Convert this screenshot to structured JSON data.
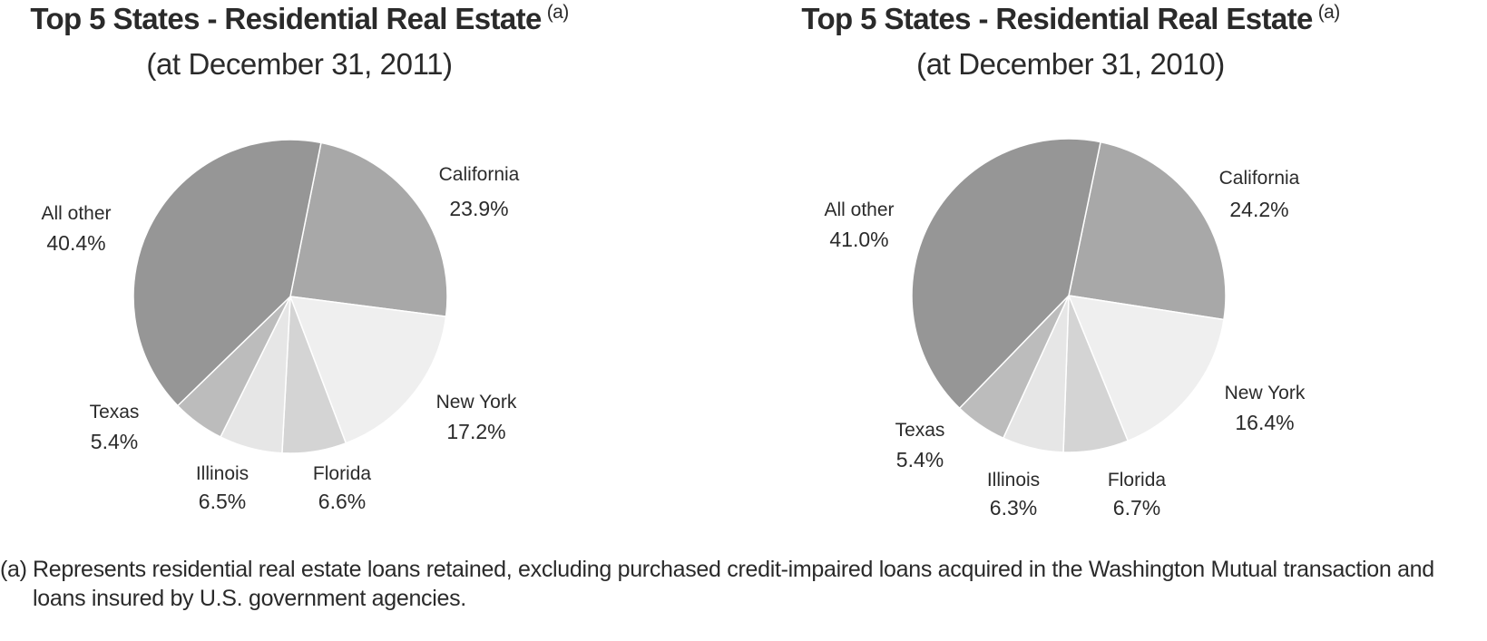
{
  "chart_data": [
    {
      "type": "pie",
      "title": "Top 5 States - Residential Real Estate",
      "title_note": "(a)",
      "subtitle": "(at December 31, 2011)",
      "slices": [
        {
          "label": "California",
          "value": 23.9,
          "display": "23.9%",
          "color": "#a8a8a8"
        },
        {
          "label": "New York",
          "value": 17.2,
          "display": "17.2%",
          "color": "#efefef"
        },
        {
          "label": "Florida",
          "value": 6.6,
          "display": "6.6%",
          "color": "#d4d4d4"
        },
        {
          "label": "Illinois",
          "value": 6.5,
          "display": "6.5%",
          "color": "#e6e6e6"
        },
        {
          "label": "Texas",
          "value": 5.4,
          "display": "5.4%",
          "color": "#bcbcbc"
        },
        {
          "label": "All other",
          "value": 40.4,
          "display": "40.4%",
          "color": "#969696"
        }
      ]
    },
    {
      "type": "pie",
      "title": "Top 5 States - Residential Real Estate",
      "title_note": "(a)",
      "subtitle": "(at December 31, 2010)",
      "slices": [
        {
          "label": "California",
          "value": 24.2,
          "display": "24.2%",
          "color": "#a8a8a8"
        },
        {
          "label": "New York",
          "value": 16.4,
          "display": "16.4%",
          "color": "#efefef"
        },
        {
          "label": "Florida",
          "value": 6.7,
          "display": "6.7%",
          "color": "#d4d4d4"
        },
        {
          "label": "Illinois",
          "value": 6.3,
          "display": "6.3%",
          "color": "#e6e6e6"
        },
        {
          "label": "Texas",
          "value": 5.4,
          "display": "5.4%",
          "color": "#bcbcbc"
        },
        {
          "label": "All other",
          "value": 41.0,
          "display": "41.0%",
          "color": "#969696"
        }
      ]
    }
  ],
  "footnote": {
    "marker": "(a)",
    "text": "Represents residential real estate loans retained, excluding purchased credit-impaired loans acquired in the Washington Mutual transaction and loans insured by U.S. government agencies."
  }
}
